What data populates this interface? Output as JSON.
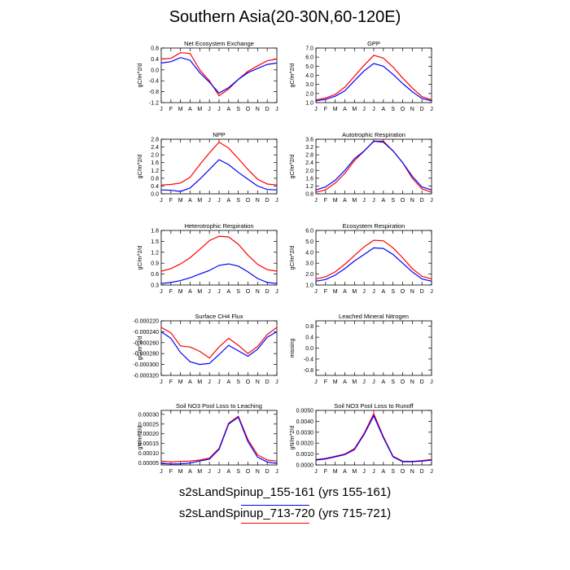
{
  "page": {
    "title": "Southern Asia(20-30N,60-120E)"
  },
  "legend": {
    "entries": [
      {
        "label": "s2sLandSpinup_155-161 (yrs 155-161)",
        "color": "#0000ff"
      },
      {
        "label": "s2sLandSpinup_713-720 (yrs 715-721)",
        "color": "#ff0000"
      }
    ]
  },
  "months": [
    "J",
    "F",
    "M",
    "A",
    "M",
    "J",
    "J",
    "A",
    "S",
    "O",
    "N",
    "D",
    "J"
  ],
  "chart_data": [
    {
      "type": "line",
      "title": "Net Ecosystem Exchange",
      "ylabel": "gC/m^2/d",
      "ylim": [
        -1.2,
        0.8
      ],
      "yticks": [
        "0.8",
        "0.4",
        "0.0",
        "-0.4",
        "-0.8",
        "-1.2"
      ],
      "ytick_values": [
        0.8,
        0.4,
        0.0,
        -0.4,
        -0.8,
        -1.2
      ],
      "series": [
        {
          "color": "#0000ff",
          "values": [
            0.25,
            0.3,
            0.45,
            0.35,
            -0.1,
            -0.45,
            -0.85,
            -0.65,
            -0.35,
            -0.1,
            0.05,
            0.2,
            0.25
          ]
        },
        {
          "color": "#ff0000",
          "values": [
            0.4,
            0.42,
            0.63,
            0.6,
            0.0,
            -0.4,
            -0.95,
            -0.7,
            -0.35,
            -0.05,
            0.15,
            0.33,
            0.4
          ]
        }
      ]
    },
    {
      "type": "line",
      "title": "GPP",
      "ylabel": "gC/m^2/d",
      "ylim": [
        1.0,
        7.0
      ],
      "yticks": [
        "7.0",
        "6.0",
        "5.0",
        "4.0",
        "3.0",
        "2.0",
        "1.0"
      ],
      "ytick_values": [
        7,
        6,
        5,
        4,
        3,
        2,
        1
      ],
      "series": [
        {
          "color": "#0000ff",
          "values": [
            1.2,
            1.35,
            1.7,
            2.3,
            3.4,
            4.5,
            5.3,
            5.0,
            4.1,
            3.1,
            2.2,
            1.45,
            1.2
          ]
        },
        {
          "color": "#ff0000",
          "values": [
            1.3,
            1.5,
            1.9,
            2.7,
            3.9,
            5.1,
            6.2,
            5.9,
            4.9,
            3.7,
            2.6,
            1.65,
            1.3
          ]
        }
      ]
    },
    {
      "type": "line",
      "title": "NPP",
      "ylabel": "gC/m^2/d",
      "ylim": [
        0.0,
        2.8
      ],
      "yticks": [
        "2.8",
        "2.4",
        "2.0",
        "1.6",
        "1.2",
        "0.8",
        "0.4",
        "0.0"
      ],
      "ytick_values": [
        2.8,
        2.4,
        2.0,
        1.6,
        1.2,
        0.8,
        0.4,
        0.0
      ],
      "series": [
        {
          "color": "#0000ff",
          "values": [
            0.2,
            0.18,
            0.12,
            0.3,
            0.75,
            1.25,
            1.75,
            1.5,
            1.1,
            0.75,
            0.4,
            0.22,
            0.2
          ]
        },
        {
          "color": "#ff0000",
          "values": [
            0.45,
            0.48,
            0.55,
            0.85,
            1.5,
            2.1,
            2.65,
            2.35,
            1.8,
            1.25,
            0.75,
            0.5,
            0.45
          ]
        }
      ]
    },
    {
      "type": "line",
      "title": "Autotrophic Respiration",
      "ylabel": "gC/m^2/d",
      "ylim": [
        0.8,
        3.6
      ],
      "yticks": [
        "3.6",
        "3.2",
        "2.8",
        "2.4",
        "2.0",
        "1.6",
        "1.2",
        "0.8"
      ],
      "ytick_values": [
        3.6,
        3.2,
        2.8,
        2.4,
        2.0,
        1.6,
        1.2,
        0.8
      ],
      "series": [
        {
          "color": "#0000ff",
          "values": [
            1.0,
            1.15,
            1.5,
            2.0,
            2.6,
            3.0,
            3.5,
            3.45,
            3.0,
            2.4,
            1.7,
            1.15,
            1.0
          ]
        },
        {
          "color": "#ff0000",
          "values": [
            0.88,
            1.0,
            1.35,
            1.85,
            2.5,
            3.0,
            3.5,
            3.5,
            3.0,
            2.4,
            1.6,
            1.05,
            0.88
          ]
        }
      ]
    },
    {
      "type": "line",
      "title": "Heterotrophic Respiration",
      "ylabel": "gC/m^2/d",
      "ylim": [
        0.3,
        1.8
      ],
      "yticks": [
        "1.8",
        "1.5",
        "1.2",
        "0.9",
        "0.6",
        "0.3"
      ],
      "ytick_values": [
        1.8,
        1.5,
        1.2,
        0.9,
        0.6,
        0.3
      ],
      "series": [
        {
          "color": "#0000ff",
          "values": [
            0.34,
            0.37,
            0.42,
            0.5,
            0.6,
            0.7,
            0.84,
            0.88,
            0.82,
            0.66,
            0.48,
            0.37,
            0.34
          ]
        },
        {
          "color": "#ff0000",
          "values": [
            0.68,
            0.75,
            0.88,
            1.05,
            1.28,
            1.52,
            1.64,
            1.62,
            1.42,
            1.12,
            0.87,
            0.72,
            0.68
          ]
        }
      ]
    },
    {
      "type": "line",
      "title": "Ecosystem Respiration",
      "ylabel": "gC/m^2/d",
      "ylim": [
        1.0,
        6.0
      ],
      "yticks": [
        "6.0",
        "5.0",
        "4.0",
        "3.0",
        "2.0",
        "1.0"
      ],
      "ytick_values": [
        6,
        5,
        4,
        3,
        2,
        1
      ],
      "series": [
        {
          "color": "#0000ff",
          "values": [
            1.35,
            1.5,
            1.9,
            2.5,
            3.2,
            3.8,
            4.4,
            4.35,
            3.8,
            3.0,
            2.2,
            1.55,
            1.35
          ]
        },
        {
          "color": "#ff0000",
          "values": [
            1.55,
            1.75,
            2.2,
            2.9,
            3.7,
            4.5,
            5.1,
            5.05,
            4.4,
            3.5,
            2.5,
            1.8,
            1.55
          ]
        }
      ]
    },
    {
      "type": "line",
      "title": "Surface CH4 Flux",
      "ylabel": "gC/m^2/d",
      "ylim": [
        -0.00032,
        -0.00022
      ],
      "yticks": [
        "-0.000220",
        "-0.000240",
        "-0.000260",
        "-0.000280",
        "-0.000300",
        "-0.000320"
      ],
      "ytick_values": [
        -0.00022,
        -0.00024,
        -0.00026,
        -0.00028,
        -0.0003,
        -0.00032
      ],
      "series": [
        {
          "color": "#0000ff",
          "values": [
            -0.00024,
            -0.000252,
            -0.000278,
            -0.000295,
            -0.0003,
            -0.000298,
            -0.000282,
            -0.000265,
            -0.000275,
            -0.000285,
            -0.000272,
            -0.00025,
            -0.00024
          ]
        },
        {
          "color": "#ff0000",
          "values": [
            -0.000232,
            -0.000242,
            -0.000266,
            -0.000268,
            -0.000276,
            -0.000288,
            -0.000268,
            -0.000252,
            -0.000265,
            -0.00028,
            -0.000267,
            -0.000245,
            -0.000232
          ]
        }
      ]
    },
    {
      "type": "line",
      "title": "Leached Mineral Nitrogen",
      "ylabel": "missing",
      "ylim": [
        -1.0,
        1.0
      ],
      "yticks": [
        "0.8",
        "0.4",
        "0.0",
        "-0.4",
        "-0.8"
      ],
      "ytick_values": [
        0.8,
        0.4,
        0.0,
        -0.4,
        -0.8
      ],
      "series": []
    },
    {
      "type": "line",
      "title": "Soil NO3 Pool Loss to Leaching",
      "ylabel": "gN/m^2/d",
      "ylim": [
        4e-05,
        0.00032
      ],
      "yticks": [
        "0.00030",
        "0.00025",
        "0.00020",
        "0.00015",
        "0.00010",
        "0.00005"
      ],
      "ytick_values": [
        0.0003,
        0.00025,
        0.0002,
        0.00015,
        0.0001,
        5e-05
      ],
      "series": [
        {
          "color": "#0000ff",
          "values": [
            4.8e-05,
            4.5e-05,
            4.6e-05,
            5e-05,
            6e-05,
            7e-05,
            0.00012,
            0.00025,
            0.000285,
            0.00016,
            8e-05,
            5.5e-05,
            4.8e-05
          ]
        },
        {
          "color": "#ff0000",
          "values": [
            6e-05,
            5.5e-05,
            5.8e-05,
            6e-05,
            6.5e-05,
            7.5e-05,
            0.000125,
            0.000255,
            0.00029,
            0.00017,
            9.2e-05,
            6.5e-05,
            6e-05
          ]
        }
      ]
    },
    {
      "type": "line",
      "title": "Soil NO3 Pool Loss to Runoff",
      "ylabel": "gN/m^2/d",
      "ylim": [
        0.0,
        0.005
      ],
      "yticks": [
        "0.0050",
        "0.0040",
        "0.0030",
        "0.0020",
        "0.0010",
        "0.0000"
      ],
      "ytick_values": [
        0.005,
        0.004,
        0.003,
        0.002,
        0.001,
        0.0
      ],
      "series": [
        {
          "color": "#0000ff",
          "values": [
            0.00045,
            0.00055,
            0.00075,
            0.00095,
            0.0014,
            0.0028,
            0.0045,
            0.0025,
            0.00075,
            0.0003,
            0.0003,
            0.00035,
            0.00045
          ]
        },
        {
          "color": "#ff0000",
          "values": [
            0.0005,
            0.0006,
            0.0008,
            0.001,
            0.0015,
            0.0029,
            0.0047,
            0.0026,
            0.0008,
            0.00035,
            0.00033,
            0.0004,
            0.0005
          ]
        }
      ]
    }
  ]
}
